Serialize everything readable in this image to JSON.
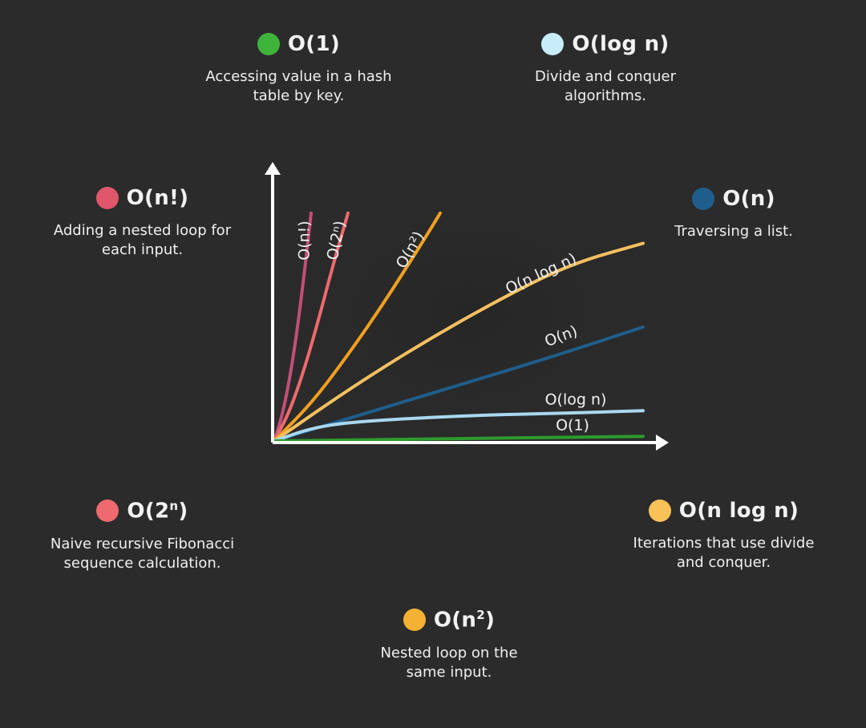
{
  "legend": {
    "o1": {
      "title": "O(1)",
      "desc_line1": "Accessing value in a hash",
      "desc_line2": "table by key.",
      "color": "#3fb43a"
    },
    "ologn": {
      "title": "O(log n)",
      "desc_line1": "Divide and conquer",
      "desc_line2": "algorithms.",
      "color": "#c8ecf8"
    },
    "ofact": {
      "title": "O(n!)",
      "desc_line1": "Adding a nested loop for",
      "desc_line2": "each input.",
      "color": "#e0566a"
    },
    "on": {
      "title": "O(n)",
      "desc_line1": "Traversing a list.",
      "desc_line2": "",
      "color": "#1f5e8c"
    },
    "o2n": {
      "title_base": "O(2",
      "title_sup": "n",
      "title_end": ")",
      "desc_line1": "Naive recursive Fibonacci",
      "desc_line2": "sequence calculation.",
      "color": "#ee6a6e"
    },
    "onlogn": {
      "title": "O(n log n)",
      "desc_line1": "Iterations that use divide",
      "desc_line2": "and conquer.",
      "color": "#f9c257"
    },
    "on2": {
      "title_base": "O(n",
      "title_sup": "2",
      "title_end": ")",
      "desc_line1": "Nested loop on the",
      "desc_line2": "same input.",
      "color": "#f5b133"
    }
  },
  "chart_data": {
    "type": "line",
    "title": "",
    "xlabel": "",
    "ylabel": "",
    "xlim": [
      0,
      1
    ],
    "ylim": [
      0,
      1
    ],
    "grid": false,
    "series": [
      {
        "name": "O(n!)",
        "color": "#c24f78",
        "x": [
          0,
          0.02,
          0.04,
          0.06,
          0.08,
          0.1
        ],
        "y": [
          0,
          0.1,
          0.25,
          0.45,
          0.7,
          0.98
        ]
      },
      {
        "name": "O(2ⁿ)",
        "color": "#ee6a6e",
        "x": [
          0,
          0.04,
          0.08,
          0.12,
          0.16,
          0.2
        ],
        "y": [
          0,
          0.12,
          0.3,
          0.52,
          0.76,
          0.98
        ]
      },
      {
        "name": "O(n²)",
        "color": "#f0a020",
        "x": [
          0,
          0.1,
          0.2,
          0.3,
          0.4,
          0.45
        ],
        "y": [
          0,
          0.16,
          0.37,
          0.6,
          0.85,
          0.98
        ]
      },
      {
        "name": "O(n log n)",
        "color": "#f5c060",
        "x": [
          0,
          0.2,
          0.4,
          0.6,
          0.8,
          1.0
        ],
        "y": [
          0,
          0.22,
          0.42,
          0.6,
          0.76,
          0.85
        ]
      },
      {
        "name": "O(n)",
        "color": "#1f5e8c",
        "x": [
          0,
          0.25,
          0.5,
          0.75,
          1.0
        ],
        "y": [
          0,
          0.12,
          0.24,
          0.36,
          0.49
        ]
      },
      {
        "name": "O(log n)",
        "color": "#a8d8f0",
        "x": [
          0,
          0.1,
          0.2,
          0.4,
          0.6,
          0.8,
          1.0
        ],
        "y": [
          0,
          0.055,
          0.08,
          0.1,
          0.113,
          0.12,
          0.13
        ]
      },
      {
        "name": "O(1)",
        "color": "#2e9a2e",
        "x": [
          0,
          1.0
        ],
        "y": [
          0,
          0.02
        ]
      }
    ]
  }
}
